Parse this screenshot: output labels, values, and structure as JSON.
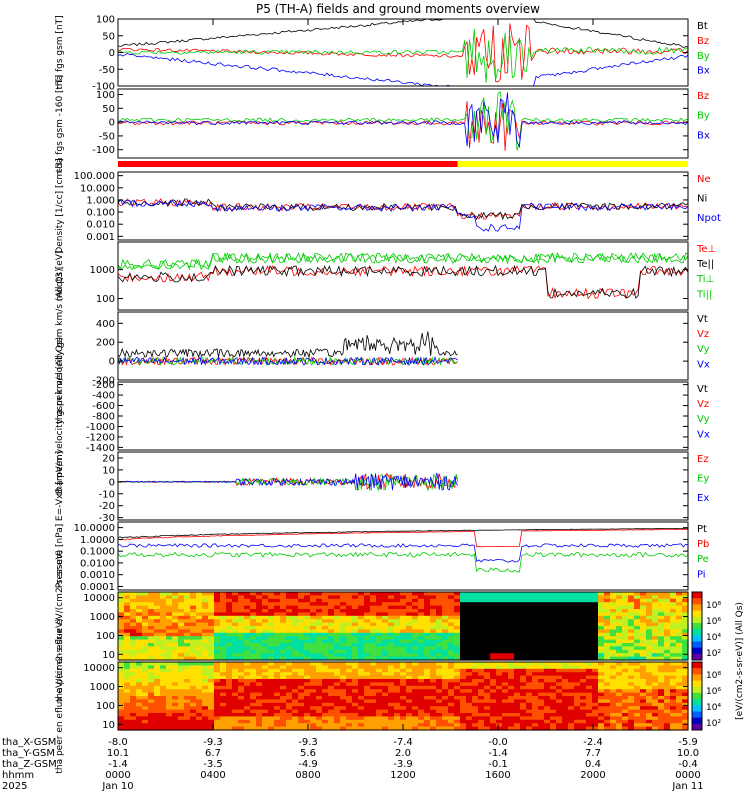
{
  "title": "P5 (TH-A) fields and ground moments overview",
  "chart_data": {
    "type": "line",
    "title": "P5 (TH-A) fields and ground moments overview",
    "x_tick_rows": [
      {
        "label": "tha_X-GSM",
        "values": [
          "-8.0",
          "-9.3",
          "-9.3",
          "-7.4",
          "-0.0",
          "-2.4",
          "-5.9"
        ]
      },
      {
        "label": "tha_Y-GSM",
        "values": [
          "10.1",
          "6.7",
          "5.6",
          "2.0",
          "-1.4",
          "7.7",
          "10.0"
        ]
      },
      {
        "label": "tha_Z-GSM",
        "values": [
          "-1.4",
          "-3.5",
          "-4.9",
          "-3.9",
          "-0.1",
          "0.4",
          "-0.4"
        ]
      },
      {
        "label": "hhmm",
        "values": [
          "0000",
          "0400",
          "0800",
          "1200",
          "1600",
          "2000",
          "0000"
        ]
      },
      {
        "label": "2025",
        "values": [
          "Jan 10",
          "",
          "",
          "",
          "",
          "",
          "Jan 11"
        ]
      }
    ],
    "x_range_hours": [
      0,
      24
    ],
    "panels": [
      {
        "ylabel": "tha fgs gsm [nT]",
        "ticks": [
          "100",
          "50",
          "0",
          "-50",
          "-100"
        ],
        "log": false,
        "ylim": [
          -100,
          100
        ],
        "legend": [
          {
            "name": "Bt",
            "color": "#000000"
          },
          {
            "name": "Bz",
            "color": "#ff0000"
          },
          {
            "name": "By",
            "color": "#00cc00"
          },
          {
            "name": "Bx",
            "color": "#0000ff"
          }
        ]
      },
      {
        "ylabel": "tha fgs gsm -160 [nT]",
        "ticks": [
          "100",
          "50",
          "0",
          "-50",
          "-100"
        ],
        "log": false,
        "ylim": [
          -130,
          120
        ],
        "legend": [
          {
            "name": "Bz",
            "color": "#ff0000"
          },
          {
            "name": "By",
            "color": "#00cc00"
          },
          {
            "name": "Bx",
            "color": "#0000ff"
          }
        ]
      },
      {
        "ylabel": "Density [1/cc] [cm-3]",
        "ticks": [
          "100.000",
          "10.000",
          "1.000",
          "0.100",
          "0.010",
          "0.001"
        ],
        "log": true,
        "ylim": [
          0.0005,
          200
        ],
        "legend": [
          {
            "name": "Ne",
            "color": "#ff0000"
          },
          {
            "name": "Ni",
            "color": "#000000"
          },
          {
            "name": "Npot",
            "color": "#0000ff"
          }
        ]
      },
      {
        "ylabel": "moqt3 [eV]",
        "ticks": [
          "1000",
          "100"
        ],
        "log": true,
        "ylim": [
          40,
          9000
        ],
        "legend": [
          {
            "name": "Te⊥",
            "color": "#ff0000"
          },
          {
            "name": "Te||",
            "color": "#000000"
          },
          {
            "name": "Ti⊥",
            "color": "#00cc00"
          },
          {
            "name": "Ti||",
            "color": "#00cc00"
          }
        ]
      },
      {
        "ylabel": "tha peir velocity gsm km/s (All Qs)",
        "ticks": [
          "400",
          "200",
          "0",
          "-200"
        ],
        "log": false,
        "ylim": [
          -200,
          520
        ],
        "legend": [
          {
            "name": "Vt",
            "color": "#000000"
          },
          {
            "name": "Vz",
            "color": "#ff0000"
          },
          {
            "name": "Vy",
            "color": "#00cc00"
          },
          {
            "name": "Vx",
            "color": "#0000ff"
          }
        ]
      },
      {
        "ylabel": "tha peer velocity gsm km/s (All Qs)",
        "ticks": [
          "-200",
          "-400",
          "-600",
          "-800",
          "-1000",
          "-1200",
          "-1400"
        ],
        "log": false,
        "ylim": [
          -1450,
          -150
        ],
        "legend": [
          {
            "name": "Vt",
            "color": "#000000"
          },
          {
            "name": "Vz",
            "color": "#ff0000"
          },
          {
            "name": "Vy",
            "color": "#00cc00"
          },
          {
            "name": "Vx",
            "color": "#0000ff"
          }
        ]
      },
      {
        "ylabel": "E=-VxB [mV/m]",
        "ticks": [
          "20",
          "10",
          "0",
          "-10",
          "-20",
          "-30"
        ],
        "log": false,
        "ylim": [
          -32,
          25
        ],
        "legend": [
          {
            "name": "Ez",
            "color": "#ff0000"
          },
          {
            "name": "Ey",
            "color": "#00cc00"
          },
          {
            "name": "Ex",
            "color": "#0000ff"
          }
        ]
      },
      {
        "ylabel": "Pressure [nPa]",
        "ticks": [
          "10.0000",
          "1.0000",
          "0.1000",
          "0.0100",
          "0.0010",
          "0.0001"
        ],
        "log": true,
        "ylim": [
          5e-05,
          30
        ],
        "legend": [
          {
            "name": "Pt",
            "color": "#000000"
          },
          {
            "name": "Pb",
            "color": "#ff0000"
          },
          {
            "name": "Pe",
            "color": "#00cc00"
          },
          {
            "name": "Pi",
            "color": "#0000ff"
          }
        ]
      },
      {
        "ylabel": "tha peir en eflux eV/(cm2-s-sr-eV)",
        "ticks": [
          "10000",
          "1000",
          "100",
          "10"
        ],
        "log": true,
        "ylim": [
          5,
          20000
        ],
        "kind": "spectrogram"
      },
      {
        "ylabel": "tha peer en eflux eV/(cm2-s-sr-eV)",
        "ticks": [
          "10000",
          "1000",
          "100",
          "10"
        ],
        "log": true,
        "ylim": [
          5,
          20000
        ],
        "kind": "spectrogram"
      }
    ],
    "colorbars": [
      {
        "ticks": [
          "10⁸",
          "10⁶",
          "10⁴",
          "10²"
        ],
        "label": "[eV/(cm2-s-sr-eV)] (All Qs)"
      },
      {
        "ticks": [
          "10⁸",
          "10⁶",
          "10⁴",
          "10²"
        ],
        "label": "[eV/(cm2-s-sr-eV)]"
      }
    ],
    "mode_bar": [
      {
        "from_hour": 0,
        "to_hour": 14.3,
        "color": "#ff0000"
      },
      {
        "from_hour": 14.3,
        "to_hour": 24,
        "color": "#ffff00"
      }
    ]
  }
}
